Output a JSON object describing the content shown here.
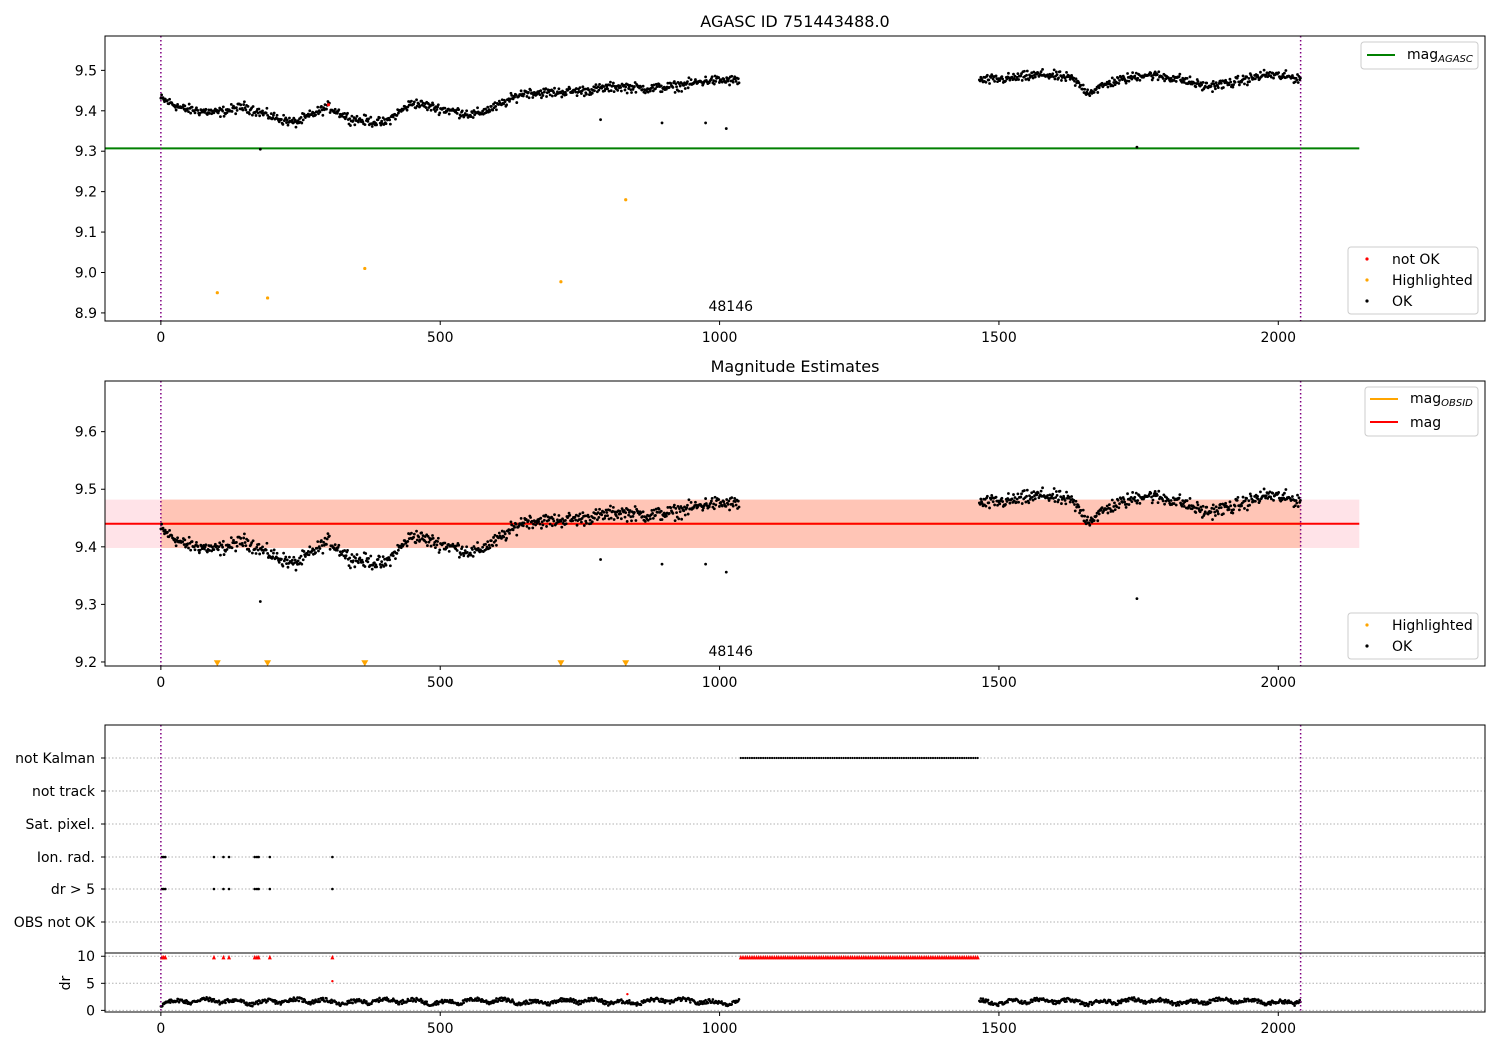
{
  "chart_data": [
    {
      "type": "scatter",
      "title": "AGASC ID 751443488.0",
      "xlim": [
        -100,
        2370
      ],
      "ylim": [
        8.88,
        9.585
      ],
      "x_ticks": [
        0,
        500,
        1000,
        1500,
        2000
      ],
      "x_tick_labels": [
        "0",
        "500",
        "1000",
        "1500",
        "2000"
      ],
      "y_ticks": [
        8.9,
        9.0,
        9.1,
        9.2,
        9.3,
        9.4,
        9.5
      ],
      "y_tick_labels": [
        "8.9",
        "9.0",
        "9.1",
        "9.2",
        "9.3",
        "9.4",
        "9.5"
      ],
      "vlines": [
        0,
        2040
      ],
      "hline": {
        "label": "mag",
        "sub": "AGASC",
        "y": 9.307,
        "x_range": [
          -100,
          2145
        ],
        "color": "#008000"
      },
      "annotation": {
        "text": "48146",
        "x": 1020,
        "y": 8.905
      },
      "ok_segments": [
        {
          "x_range": [
            0,
            1035
          ],
          "knots": [
            [
              0,
              9.43
            ],
            [
              40,
              9.405
            ],
            [
              100,
              9.395
            ],
            [
              150,
              9.41
            ],
            [
              200,
              9.385
            ],
            [
              240,
              9.37
            ],
            [
              300,
              9.41
            ],
            [
              340,
              9.38
            ],
            [
              400,
              9.37
            ],
            [
              450,
              9.42
            ],
            [
              500,
              9.405
            ],
            [
              560,
              9.39
            ],
            [
              600,
              9.41
            ],
            [
              650,
              9.445
            ],
            [
              700,
              9.445
            ],
            [
              760,
              9.45
            ],
            [
              820,
              9.46
            ],
            [
              870,
              9.455
            ],
            [
              920,
              9.46
            ],
            [
              980,
              9.475
            ],
            [
              1035,
              9.475
            ]
          ],
          "noise": 0.01
        },
        {
          "x_range": [
            1465,
            2040
          ],
          "knots": [
            [
              1465,
              9.475
            ],
            [
              1520,
              9.48
            ],
            [
              1580,
              9.49
            ],
            [
              1630,
              9.48
            ],
            [
              1660,
              9.445
            ],
            [
              1700,
              9.47
            ],
            [
              1760,
              9.49
            ],
            [
              1820,
              9.48
            ],
            [
              1870,
              9.46
            ],
            [
              1920,
              9.47
            ],
            [
              1980,
              9.49
            ],
            [
              2040,
              9.48
            ]
          ],
          "noise": 0.01
        }
      ],
      "ok_outliers": [
        [
          178,
          9.305
        ],
        [
          787,
          9.378
        ],
        [
          897,
          9.37
        ],
        [
          975,
          9.37
        ],
        [
          1012,
          9.356
        ],
        [
          1747,
          9.31
        ]
      ],
      "highlighted": [
        [
          101,
          8.95
        ],
        [
          191,
          8.937
        ],
        [
          365,
          9.01
        ],
        [
          716,
          8.977
        ],
        [
          832,
          9.18
        ]
      ],
      "not_ok": [
        [
          300,
          9.415
        ]
      ],
      "colors": {
        "ok": "#000000",
        "highlighted": "#ffa500",
        "not_ok": "#ff0000",
        "vline": "#800080"
      },
      "legend_top": [
        {
          "label": "mag",
          "sub": "AGASC",
          "color": "#008000"
        }
      ],
      "legend_bottom": [
        {
          "label": "not OK",
          "color": "#ff0000"
        },
        {
          "label": "Highlighted",
          "color": "#ffa500"
        },
        {
          "label": "OK",
          "color": "#000000"
        }
      ]
    },
    {
      "type": "scatter",
      "title": "Magnitude Estimates",
      "xlim": [
        -100,
        2370
      ],
      "ylim": [
        9.193,
        9.688
      ],
      "x_ticks": [
        0,
        500,
        1000,
        1500,
        2000
      ],
      "x_tick_labels": [
        "0",
        "500",
        "1000",
        "1500",
        "2000"
      ],
      "y_ticks": [
        9.2,
        9.3,
        9.4,
        9.5,
        9.6
      ],
      "y_tick_labels": [
        "9.2",
        "9.3",
        "9.4",
        "9.5",
        "9.6"
      ],
      "vlines": [
        0,
        2040
      ],
      "mag_line": {
        "label": "mag",
        "y": 9.44,
        "x_range": [
          -100,
          2145
        ],
        "color": "#ff0000"
      },
      "mag_band": {
        "y_range": [
          9.398,
          9.482
        ],
        "x_range": [
          -100,
          2145
        ],
        "color": "#ffc0cb"
      },
      "obsid_band": {
        "label": "mag",
        "sub": "OBSID",
        "y_range": [
          9.398,
          9.482
        ],
        "x_range": [
          0,
          2040
        ],
        "color": "#ffa07a"
      },
      "annotation": {
        "text": "48146",
        "x": 1020,
        "y": 9.21
      },
      "highlighted_markers": [
        [
          101,
          9.197
        ],
        [
          191,
          9.197
        ],
        [
          365,
          9.197
        ],
        [
          716,
          9.197
        ],
        [
          832,
          9.197
        ]
      ],
      "colors": {
        "ok": "#000000",
        "highlighted": "#ffa500",
        "vline": "#800080"
      },
      "legend_top": [
        {
          "label": "mag",
          "sub": "OBSID",
          "color": "#ffa500"
        },
        {
          "label": "mag",
          "color": "#ff0000"
        }
      ],
      "legend_bottom": [
        {
          "label": "Highlighted",
          "color": "#ffa500"
        },
        {
          "label": "OK",
          "color": "#000000"
        }
      ]
    },
    {
      "type": "scatter",
      "title": "",
      "xlim": [
        -100,
        2370
      ],
      "flag_rows": [
        "not Kalman",
        "not track",
        "Sat. pixel.",
        "Ion. rad.",
        "dr > 5",
        "OBS not OK"
      ],
      "flags": {
        "not Kalman": {
          "x_range": [
            1038,
            1462
          ],
          "step": 4
        },
        "Ion. rad.": {
          "points": [
            2,
            5,
            8,
            95,
            112,
            122,
            168,
            172,
            175,
            195,
            307
          ]
        },
        "dr > 5": {
          "points": [
            2,
            5,
            8,
            95,
            112,
            122,
            168,
            172,
            175,
            195,
            307
          ]
        }
      },
      "dr_ylim": [
        -0.3,
        10.6
      ],
      "dr_ticks": [
        0,
        5,
        10
      ],
      "dr_tick_labels": [
        "0",
        "5",
        "10"
      ],
      "dr_ylabel": "dr",
      "dr_clipped": {
        "y": 9.8,
        "points": [
          2,
          5,
          8,
          95,
          112,
          122,
          168,
          172,
          175,
          195,
          307
        ],
        "range": [
          1038,
          1462
        ],
        "step": 4
      },
      "dr_extra": [
        [
          307,
          5.4
        ],
        [
          835,
          3.0
        ]
      ],
      "dr_segments": [
        [
          0,
          1035
        ],
        [
          1465,
          2040
        ]
      ],
      "x_ticks": [
        0,
        500,
        1000,
        1500,
        2000
      ],
      "x_tick_labels": [
        "0",
        "500",
        "1000",
        "1500",
        "2000"
      ],
      "vlines": [
        0,
        2040
      ],
      "colors": {
        "flag": "#000000",
        "dr": "#000000",
        "dr_clipped": "#ff0000",
        "vline": "#800080"
      }
    }
  ]
}
